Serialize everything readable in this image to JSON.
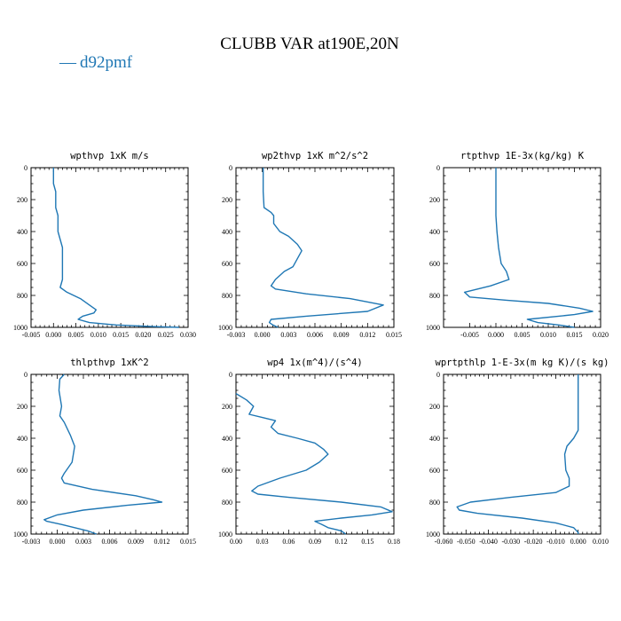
{
  "figure": {
    "title": "CLUBB VAR at190E,20N",
    "legend": {
      "label": "d92pmf",
      "symbol": "—",
      "color": "#1f77b4"
    }
  },
  "chart_data": [
    {
      "type": "line",
      "title": "wpthvp  1xK m/s",
      "xlim": [
        -0.005,
        0.03
      ],
      "xticks": [
        "-0.005",
        "0.000",
        "0.005",
        "0.010",
        "0.015",
        "0.020",
        "0.025",
        "0.030"
      ],
      "ylim": [
        1000,
        0
      ],
      "yticks": [
        "0",
        "200",
        "400",
        "600",
        "800",
        "1000"
      ],
      "series": [
        {
          "color": "#1f77b4",
          "points": [
            [
              0.0,
              0
            ],
            [
              0.0,
              100
            ],
            [
              0.0005,
              150
            ],
            [
              0.0005,
              250
            ],
            [
              0.001,
              300
            ],
            [
              0.001,
              400
            ],
            [
              0.0015,
              450
            ],
            [
              0.002,
              500
            ],
            [
              0.002,
              600
            ],
            [
              0.002,
              700
            ],
            [
              0.0015,
              750
            ],
            [
              0.003,
              780
            ],
            [
              0.006,
              820
            ],
            [
              0.008,
              860
            ],
            [
              0.0095,
              890
            ],
            [
              0.009,
              910
            ],
            [
              0.0065,
              930
            ],
            [
              0.0055,
              950
            ],
            [
              0.008,
              970
            ],
            [
              0.014,
              985
            ],
            [
              0.022,
              995
            ],
            [
              0.028,
              1000
            ]
          ]
        }
      ]
    },
    {
      "type": "line",
      "title": "wp2thvp  1xK m^2/s^2",
      "xlim": [
        -0.003,
        0.015
      ],
      "xticks": [
        "-0.003",
        "0.000",
        "0.003",
        "0.006",
        "0.009",
        "0.012",
        "0.015"
      ],
      "ylim": [
        1000,
        0
      ],
      "yticks": [
        "0",
        "200",
        "400",
        "600",
        "800",
        "1000"
      ],
      "series": [
        {
          "color": "#1f77b4",
          "points": [
            [
              0.0001,
              0
            ],
            [
              0.0001,
              150
            ],
            [
              0.0002,
              250
            ],
            [
              0.001,
              280
            ],
            [
              0.0013,
              300
            ],
            [
              0.0013,
              350
            ],
            [
              0.002,
              400
            ],
            [
              0.003,
              430
            ],
            [
              0.004,
              480
            ],
            [
              0.0045,
              520
            ],
            [
              0.004,
              570
            ],
            [
              0.0035,
              620
            ],
            [
              0.0025,
              650
            ],
            [
              0.0015,
              700
            ],
            [
              0.001,
              740
            ],
            [
              0.0015,
              760
            ],
            [
              0.005,
              790
            ],
            [
              0.01,
              820
            ],
            [
              0.0138,
              860
            ],
            [
              0.012,
              900
            ],
            [
              0.005,
              930
            ],
            [
              0.001,
              950
            ],
            [
              0.0008,
              970
            ],
            [
              0.0012,
              985
            ],
            [
              0.0018,
              1000
            ]
          ]
        }
      ]
    },
    {
      "type": "line",
      "title": "rtpthvp  1E-3x(kg/kg) K",
      "xlim": [
        -0.01,
        0.02
      ],
      "xticks": [
        "-0.005",
        "0.000",
        "0.005",
        "0.010",
        "0.015",
        "0.020"
      ],
      "ylim": [
        1000,
        0
      ],
      "yticks": [
        "0",
        "200",
        "400",
        "600",
        "800",
        "1000"
      ],
      "series": [
        {
          "color": "#1f77b4",
          "points": [
            [
              0.0,
              0
            ],
            [
              0.0,
              300
            ],
            [
              0.0002,
              400
            ],
            [
              0.0005,
              500
            ],
            [
              0.001,
              600
            ],
            [
              0.002,
              650
            ],
            [
              0.0025,
              700
            ],
            [
              -0.001,
              740
            ],
            [
              -0.006,
              780
            ],
            [
              -0.005,
              810
            ],
            [
              0.002,
              830
            ],
            [
              0.01,
              850
            ],
            [
              0.016,
              880
            ],
            [
              0.0185,
              900
            ],
            [
              0.015,
              920
            ],
            [
              0.006,
              950
            ],
            [
              0.008,
              970
            ],
            [
              0.012,
              985
            ],
            [
              0.015,
              1000
            ]
          ]
        }
      ]
    },
    {
      "type": "line",
      "title": "thlpthvp  1xK^2",
      "xlim": [
        -0.003,
        0.015
      ],
      "xticks": [
        "-0.003",
        "0.000",
        "0.003",
        "0.006",
        "0.009",
        "0.012",
        "0.015"
      ],
      "ylim": [
        1000,
        0
      ],
      "yticks": [
        "0",
        "200",
        "400",
        "600",
        "800",
        "1000"
      ],
      "series": [
        {
          "color": "#1f77b4",
          "points": [
            [
              0.0008,
              0
            ],
            [
              0.0003,
              30
            ],
            [
              0.0002,
              100
            ],
            [
              0.0005,
              200
            ],
            [
              0.0003,
              260
            ],
            [
              0.0008,
              300
            ],
            [
              0.0015,
              380
            ],
            [
              0.002,
              450
            ],
            [
              0.0017,
              550
            ],
            [
              0.0008,
              620
            ],
            [
              0.0005,
              650
            ],
            [
              0.0008,
              680
            ],
            [
              0.004,
              720
            ],
            [
              0.009,
              760
            ],
            [
              0.011,
              785
            ],
            [
              0.012,
              800
            ],
            [
              0.008,
              820
            ],
            [
              0.003,
              850
            ],
            [
              0.0,
              880
            ],
            [
              -0.0015,
              910
            ],
            [
              -0.0012,
              920
            ],
            [
              0.0005,
              940
            ],
            [
              0.002,
              960
            ],
            [
              0.0035,
              980
            ],
            [
              0.0045,
              1000
            ]
          ]
        }
      ]
    },
    {
      "type": "line",
      "title": "wp4  1x(m^4)/(s^4)",
      "xlim": [
        0.0,
        0.18
      ],
      "xticks": [
        "0.00",
        "0.03",
        "0.06",
        "0.09",
        "0.12",
        "0.15",
        "0.18"
      ],
      "ylim": [
        1000,
        0
      ],
      "yticks": [
        "0",
        "200",
        "400",
        "600",
        "800",
        "1000"
      ],
      "series": [
        {
          "color": "#1f77b4",
          "points": [
            [
              0.0,
              120
            ],
            [
              0.012,
              160
            ],
            [
              0.02,
              200
            ],
            [
              0.015,
              250
            ],
            [
              0.03,
              270
            ],
            [
              0.045,
              290
            ],
            [
              0.04,
              330
            ],
            [
              0.048,
              370
            ],
            [
              0.07,
              400
            ],
            [
              0.09,
              430
            ],
            [
              0.1,
              470
            ],
            [
              0.105,
              500
            ],
            [
              0.095,
              550
            ],
            [
              0.08,
              600
            ],
            [
              0.05,
              650
            ],
            [
              0.025,
              700
            ],
            [
              0.018,
              730
            ],
            [
              0.025,
              750
            ],
            [
              0.06,
              770
            ],
            [
              0.12,
              800
            ],
            [
              0.165,
              830
            ],
            [
              0.178,
              860
            ],
            [
              0.155,
              880
            ],
            [
              0.12,
              900
            ],
            [
              0.09,
              920
            ],
            [
              0.098,
              940
            ],
            [
              0.105,
              960
            ],
            [
              0.12,
              980
            ],
            [
              0.125,
              1000
            ]
          ]
        }
      ]
    },
    {
      "type": "line",
      "title": "wprtpthlp  1-E-3x(m kg K)/(s kg)",
      "xlim": [
        -0.06,
        0.01
      ],
      "xticks": [
        "-0.060",
        "-0.050",
        "-0.040",
        "-0.030",
        "-0.020",
        "-0.010",
        "0.000",
        "0.010"
      ],
      "ylim": [
        1000,
        0
      ],
      "yticks": [
        "0",
        "200",
        "400",
        "600",
        "800",
        "1000"
      ],
      "series": [
        {
          "color": "#1f77b4",
          "points": [
            [
              0.0,
              0
            ],
            [
              0.0,
              350
            ],
            [
              -0.002,
              400
            ],
            [
              -0.005,
              450
            ],
            [
              -0.006,
              500
            ],
            [
              -0.0055,
              600
            ],
            [
              -0.004,
              650
            ],
            [
              -0.004,
              700
            ],
            [
              -0.01,
              740
            ],
            [
              -0.03,
              770
            ],
            [
              -0.048,
              800
            ],
            [
              -0.054,
              830
            ],
            [
              -0.053,
              850
            ],
            [
              -0.045,
              870
            ],
            [
              -0.025,
              900
            ],
            [
              -0.01,
              930
            ],
            [
              -0.002,
              960
            ],
            [
              0.0,
              990
            ],
            [
              0.0,
              1000
            ]
          ]
        }
      ]
    }
  ]
}
